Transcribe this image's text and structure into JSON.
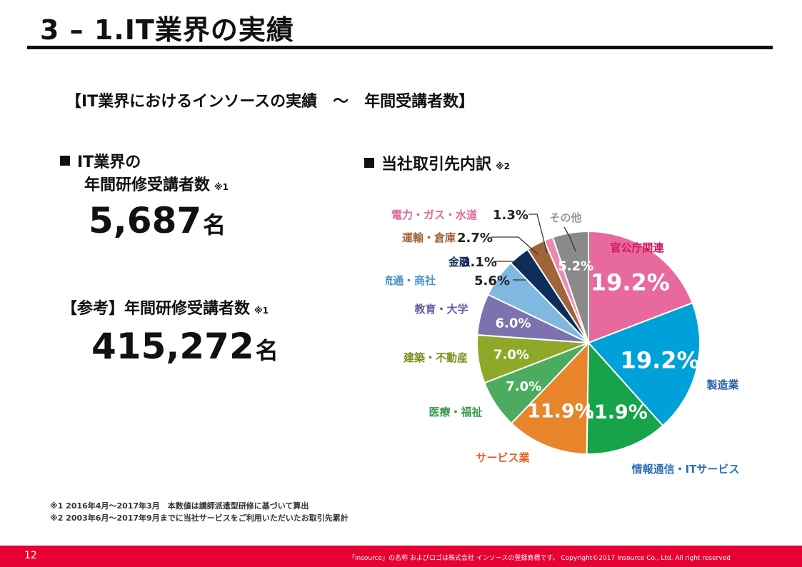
{
  "title": "3 – 1.IT業界の実績",
  "subtitle": "【IT業界におけるインソースの実績　～　年間受講者数】",
  "left": {
    "heading_line1": "IT業界の",
    "heading_line2": "年間研修受講者数",
    "heading_mark": "※1",
    "value": "5,687",
    "unit": "名",
    "reference_label": "【参考】年間研修受講者数",
    "reference_mark": "※1",
    "reference_value": "415,272",
    "reference_unit": "名"
  },
  "right": {
    "heading": "当社取引先内訳",
    "heading_mark": "※2"
  },
  "chart_data": {
    "type": "pie",
    "start": "top",
    "direction": "clockwise",
    "slices": [
      {
        "label": "官公庁関連",
        "value": 19.2,
        "value_label": "19.2%",
        "color": "#e8699d",
        "label_color": "#d0145a"
      },
      {
        "label": "製造業",
        "value": 19.2,
        "value_label": "19.2%",
        "color": "#00a0d8",
        "label_color": "#2b5fa8"
      },
      {
        "label": "情報通信・ITサービス",
        "value": 11.9,
        "value_label": "11.9%",
        "color": "#17a34a",
        "label_color": "#2b6fb8"
      },
      {
        "label": "サービス業",
        "value": 11.9,
        "value_label": "11.9%",
        "color": "#e8852a",
        "label_color": "#e0642a"
      },
      {
        "label": "医療・福祉",
        "value": 7.0,
        "value_label": "7.0%",
        "color": "#4bab5e",
        "label_color": "#3a9a4a"
      },
      {
        "label": "建築・不動産",
        "value": 7.0,
        "value_label": "7.0%",
        "color": "#8fa82a",
        "label_color": "#7a8f1e"
      },
      {
        "label": "教育・大学",
        "value": 6.0,
        "value_label": "6.0%",
        "color": "#7d72b0",
        "label_color": "#6b5fa3"
      },
      {
        "label": "流通・商社",
        "value": 5.6,
        "value_label": "5.6%",
        "color": "#7fb8e0",
        "label_color": "#4a90c8"
      },
      {
        "label": "金融",
        "value": 3.1,
        "value_label": "3.1%",
        "color": "#0d2e5c",
        "label_color": "#0d2e5c"
      },
      {
        "label": "運輸・倉庫",
        "value": 2.7,
        "value_label": "2.7%",
        "color": "#a0643a",
        "label_color": "#a0643a"
      },
      {
        "label": "電力・ガス・水道",
        "value": 1.3,
        "value_label": "1.3%",
        "color": "#e98bb2",
        "label_color": "#e2669a"
      },
      {
        "label": "その他",
        "value": 5.2,
        "value_label": "5.2%",
        "color": "#8a8a8a",
        "label_color": "#999999"
      }
    ]
  },
  "notes": [
    "※1 2016年4月～2017年3月　本数値は講師派遣型研修に基づいて算出",
    "※2 2003年6月～2017年9月までに当社サービスをご利用いただいたお取引先累計"
  ],
  "footer": {
    "page": "12",
    "copyright": "「insource」の名称 およびロゴは株式会社 インソースの登録商標です。 Copyright©2017 Insource Co., Ltd. All right reserved",
    "color": "#e60033"
  }
}
